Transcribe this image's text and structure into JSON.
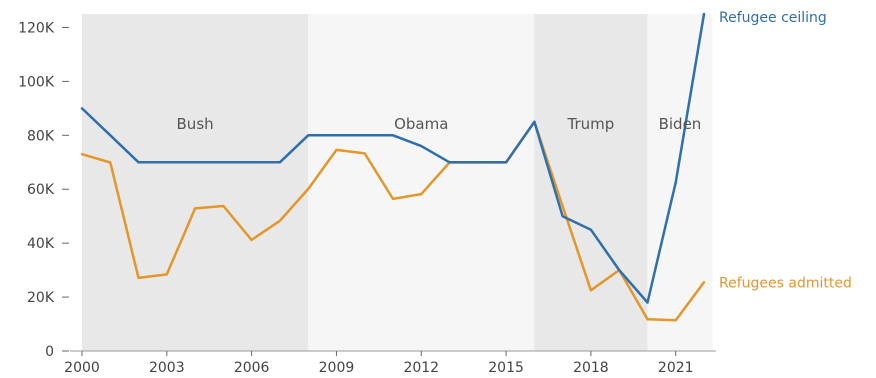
{
  "chart_data": {
    "type": "line",
    "title": "",
    "xlabel": "",
    "ylabel": "",
    "xlim": [
      2000,
      2022
    ],
    "ylim": [
      0,
      125000
    ],
    "grid": false,
    "x_ticks": [
      2000,
      2003,
      2006,
      2009,
      2012,
      2015,
      2018,
      2021
    ],
    "x_tick_labels": [
      "2000",
      "2003",
      "2006",
      "2009",
      "2012",
      "2015",
      "2018",
      "2021"
    ],
    "y_ticks": [
      0,
      20000,
      40000,
      60000,
      80000,
      100000,
      120000
    ],
    "y_tick_labels": [
      "0",
      "20K",
      "40K",
      "60K",
      "80K",
      "100K",
      "120K"
    ],
    "eras": [
      {
        "label": "Bush",
        "start": 2000,
        "end": 2008,
        "color": "#e8e8e8"
      },
      {
        "label": "Obama",
        "start": 2008,
        "end": 2016,
        "color": "#f6f6f6"
      },
      {
        "label": "Trump",
        "start": 2016,
        "end": 2020,
        "color": "#e8e8e8"
      },
      {
        "label": "Biden",
        "start": 2020,
        "end": 2022.3,
        "color": "#f6f6f6"
      }
    ],
    "x": [
      2000,
      2001,
      2002,
      2003,
      2004,
      2005,
      2006,
      2007,
      2008,
      2009,
      2010,
      2011,
      2012,
      2013,
      2014,
      2015,
      2016,
      2017,
      2018,
      2019,
      2020,
      2021,
      2022
    ],
    "series": [
      {
        "name": "Refugee ceiling",
        "color": "#2f6fab",
        "values": [
          90000,
          80000,
          70000,
          70000,
          70000,
          70000,
          70000,
          70000,
          80000,
          80000,
          80000,
          80000,
          76000,
          70000,
          70000,
          70000,
          85000,
          50000,
          45000,
          30000,
          18000,
          62500,
          125000
        ]
      },
      {
        "name": "Refugees admitted",
        "color": "#e3962a",
        "values": [
          73000,
          69900,
          27100,
          28400,
          52900,
          53800,
          41200,
          48300,
          60100,
          74600,
          73300,
          56400,
          58200,
          69900,
          69900,
          69900,
          85000,
          53700,
          22500,
          30000,
          11800,
          11400,
          25500
        ]
      }
    ]
  }
}
